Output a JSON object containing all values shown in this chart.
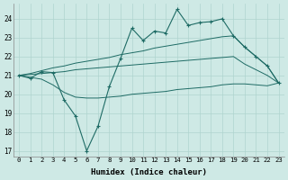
{
  "xlabel": "Humidex (Indice chaleur)",
  "bg_color": "#cee9e5",
  "grid_color": "#afd4cf",
  "line_color": "#1e6b65",
  "xlim": [
    -0.5,
    23.5
  ],
  "ylim": [
    16.7,
    24.8
  ],
  "yticks": [
    17,
    18,
    19,
    20,
    21,
    22,
    23,
    24
  ],
  "xticks": [
    0,
    1,
    2,
    3,
    4,
    5,
    6,
    7,
    8,
    9,
    10,
    11,
    12,
    13,
    14,
    15,
    16,
    17,
    18,
    19,
    20,
    21,
    22,
    23
  ],
  "hours": [
    0,
    1,
    2,
    3,
    4,
    5,
    6,
    7,
    8,
    9,
    10,
    11,
    12,
    13,
    14,
    15,
    16,
    17,
    18,
    19,
    20,
    21,
    22,
    23
  ],
  "line_main": [
    21.0,
    20.85,
    21.2,
    21.15,
    19.7,
    18.85,
    17.0,
    18.3,
    20.4,
    21.9,
    23.5,
    22.85,
    23.35,
    23.25,
    24.5,
    23.65,
    23.8,
    23.85,
    24.0,
    23.1,
    22.5,
    22.0,
    21.5,
    20.6
  ],
  "line_max": [
    21.0,
    21.1,
    21.25,
    21.4,
    21.5,
    21.65,
    21.75,
    21.85,
    21.95,
    22.1,
    22.2,
    22.3,
    22.45,
    22.55,
    22.65,
    22.75,
    22.85,
    22.95,
    23.05,
    23.1,
    22.5,
    22.0,
    21.5,
    20.6
  ],
  "line_mean": [
    21.0,
    21.05,
    21.1,
    21.15,
    21.2,
    21.3,
    21.35,
    21.4,
    21.45,
    21.5,
    21.55,
    21.6,
    21.65,
    21.7,
    21.75,
    21.8,
    21.85,
    21.9,
    21.95,
    22.0,
    21.6,
    21.3,
    21.0,
    20.6
  ],
  "line_min": [
    21.0,
    20.9,
    20.8,
    20.5,
    20.1,
    19.85,
    19.8,
    19.8,
    19.85,
    19.9,
    20.0,
    20.05,
    20.1,
    20.15,
    20.25,
    20.3,
    20.35,
    20.4,
    20.5,
    20.55,
    20.55,
    20.5,
    20.45,
    20.6
  ]
}
